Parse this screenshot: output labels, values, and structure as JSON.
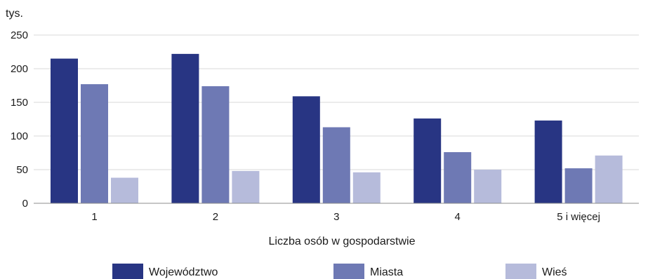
{
  "chart_data": {
    "type": "bar",
    "ylabel": "tys.",
    "xlabel": "Liczba osób w gospodarstwie",
    "ylim": [
      0,
      250
    ],
    "yticks": [
      0,
      50,
      100,
      150,
      200,
      250
    ],
    "grid": true,
    "legend_position": "bottom",
    "categories": [
      "1",
      "2",
      "3",
      "4",
      "5 i więcej"
    ],
    "series": [
      {
        "name": "Województwo",
        "color": "#283583",
        "values": [
          215,
          222,
          159,
          126,
          123
        ]
      },
      {
        "name": "Miasta",
        "color": "#6e79b4",
        "values": [
          177,
          174,
          113,
          76,
          52
        ]
      },
      {
        "name": "Wieś",
        "color": "#b6bbdb",
        "values": [
          38,
          48,
          46,
          50,
          71
        ]
      }
    ]
  }
}
